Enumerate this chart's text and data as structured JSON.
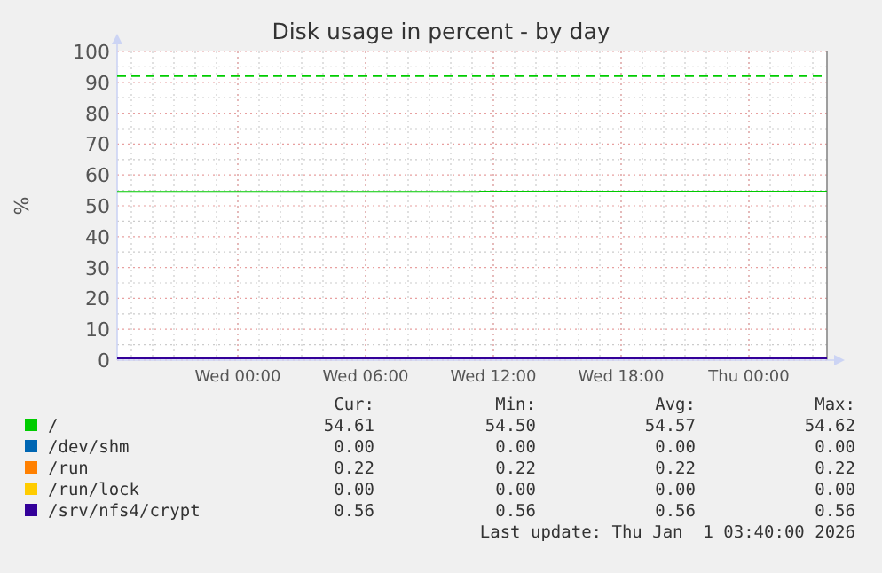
{
  "chart_data": {
    "type": "step",
    "title": "Disk usage in percent - by day",
    "ylabel": "%",
    "x": [
      "2025-12-30T18:20",
      "2026-01-01T03:40"
    ],
    "xlim": [
      "2025-12-30T18:20",
      "2026-01-01T03:40"
    ],
    "xticks": [
      {
        "value": "2025-12-31T00:00",
        "label": "Wed 00:00"
      },
      {
        "value": "2025-12-31T06:00",
        "label": "Wed 06:00"
      },
      {
        "value": "2025-12-31T12:00",
        "label": "Wed 12:00"
      },
      {
        "value": "2025-12-31T18:00",
        "label": "Wed 18:00"
      },
      {
        "value": "2026-01-01T00:00",
        "label": "Thu 00:00"
      }
    ],
    "ylim": [
      0,
      100
    ],
    "yticks": [
      0,
      10,
      20,
      30,
      40,
      50,
      60,
      70,
      80,
      90,
      100
    ],
    "grid": true,
    "legend": "bottom",
    "line_style": "solid",
    "series": [
      {
        "name": "/",
        "color": "#00cc00",
        "x": [
          "2025-12-30T18:20",
          "2025-12-31T11:20",
          "2026-01-01T03:40"
        ],
        "values": [
          54.5,
          54.6,
          54.6
        ]
      },
      {
        "name": "/dev/shm",
        "color": "#0066b3",
        "values": [
          null,
          null
        ]
      },
      {
        "name": "/run",
        "color": "#ff8000",
        "values": [
          null,
          null
        ]
      },
      {
        "name": "/run/lock",
        "color": "#ffcc00",
        "values": [
          null,
          null
        ]
      },
      {
        "name": "/srv/nfs4/crypt",
        "color": "#330099",
        "values": [
          0.6,
          0.6
        ]
      }
    ],
    "ref_lines": [
      {
        "axis": "y",
        "value": 92,
        "color": "#00cc00",
        "line_style": "dashed"
      }
    ],
    "annotations": [
      "Cur:",
      "Min:",
      "Avg:",
      "Max:",
      "54.61",
      "54.50",
      "54.57",
      "54.62",
      "0.00",
      "0.00",
      "0.00",
      "0.00",
      "0.22",
      "0.22",
      "0.22",
      "0.22",
      "0.00",
      "0.00",
      "0.00",
      "0.00",
      "0.56",
      "0.56",
      "0.56",
      "0.56",
      "Last update: Thu Jan  1 03:40:00 2026"
    ]
  }
}
